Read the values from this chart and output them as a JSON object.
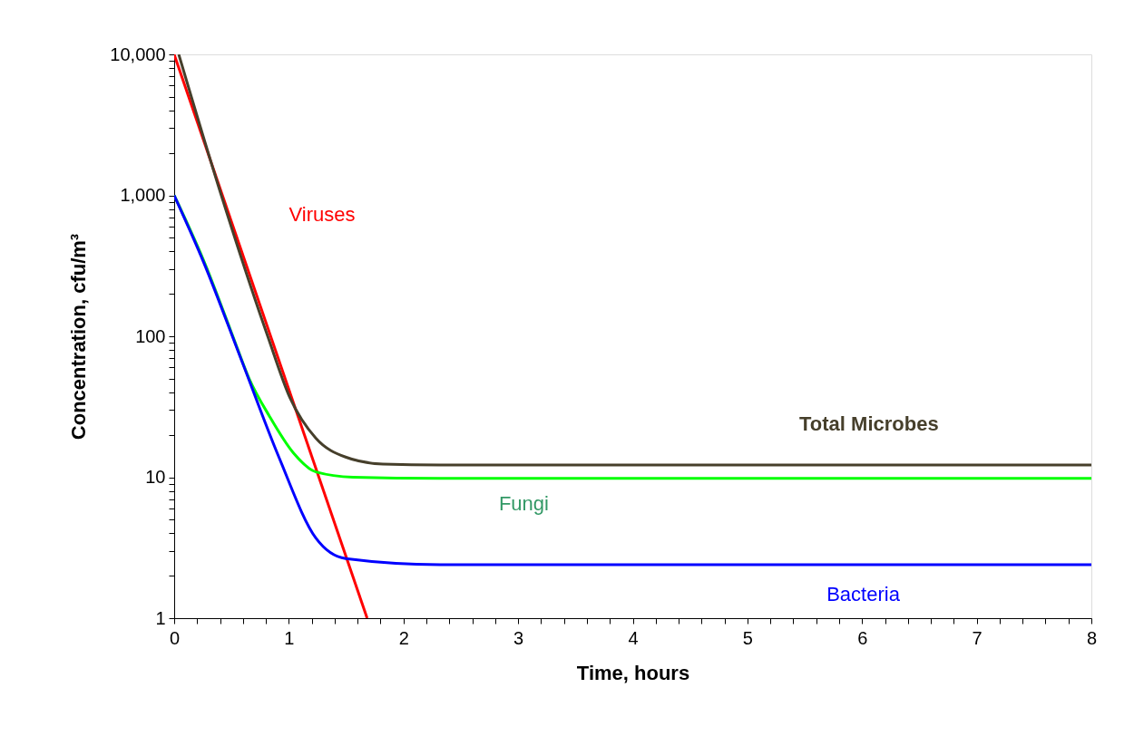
{
  "chart_data": {
    "type": "line",
    "xlabel": "Time, hours",
    "ylabel": "Concentration, cfu/m³",
    "log": "y",
    "grid": false,
    "marker": "none",
    "line_style": "solid",
    "xlim": [
      0,
      8
    ],
    "ylim": [
      1,
      10000
    ],
    "xticks": [
      0,
      {
        "value": 0.2,
        "label": null
      },
      {
        "value": 0.4,
        "label": null
      },
      {
        "value": 0.6,
        "label": null
      },
      {
        "value": 0.8,
        "label": null
      },
      1,
      {
        "value": 1.2,
        "label": null
      },
      {
        "value": 1.4,
        "label": null
      },
      {
        "value": 1.6,
        "label": null
      },
      {
        "value": 1.8,
        "label": null
      },
      2,
      {
        "value": 2.2,
        "label": null
      },
      {
        "value": 2.4,
        "label": null
      },
      {
        "value": 2.6,
        "label": null
      },
      {
        "value": 2.8,
        "label": null
      },
      3,
      {
        "value": 3.2,
        "label": null
      },
      {
        "value": 3.4,
        "label": null
      },
      {
        "value": 3.6,
        "label": null
      },
      {
        "value": 3.8,
        "label": null
      },
      4,
      {
        "value": 4.2,
        "label": null
      },
      {
        "value": 4.4,
        "label": null
      },
      {
        "value": 4.6,
        "label": null
      },
      {
        "value": 4.8,
        "label": null
      },
      5,
      {
        "value": 5.2,
        "label": null
      },
      {
        "value": 5.4,
        "label": null
      },
      {
        "value": 5.6,
        "label": null
      },
      {
        "value": 5.8,
        "label": null
      },
      6,
      {
        "value": 6.2,
        "label": null
      },
      {
        "value": 6.4,
        "label": null
      },
      {
        "value": 6.6,
        "label": null
      },
      {
        "value": 6.8,
        "label": null
      },
      7,
      {
        "value": 7.2,
        "label": null
      },
      {
        "value": 7.4,
        "label": null
      },
      {
        "value": 7.6,
        "label": null
      },
      {
        "value": 7.8,
        "label": null
      },
      8
    ],
    "yticks": [
      1,
      {
        "value": 2,
        "label": null
      },
      {
        "value": 3,
        "label": null
      },
      {
        "value": 4,
        "label": null
      },
      {
        "value": 5,
        "label": null
      },
      {
        "value": 6,
        "label": null
      },
      {
        "value": 7,
        "label": null
      },
      {
        "value": 8,
        "label": null
      },
      {
        "value": 9,
        "label": null
      },
      10,
      {
        "value": 20,
        "label": null
      },
      {
        "value": 30,
        "label": null
      },
      {
        "value": 40,
        "label": null
      },
      {
        "value": 50,
        "label": null
      },
      {
        "value": 60,
        "label": null
      },
      {
        "value": 70,
        "label": null
      },
      {
        "value": 80,
        "label": null
      },
      {
        "value": 90,
        "label": null
      },
      100,
      {
        "value": 200,
        "label": null
      },
      {
        "value": 300,
        "label": null
      },
      {
        "value": 400,
        "label": null
      },
      {
        "value": 500,
        "label": null
      },
      {
        "value": 600,
        "label": null
      },
      {
        "value": 700,
        "label": null
      },
      {
        "value": 800,
        "label": null
      },
      {
        "value": 900,
        "label": null
      },
      {
        "value": 1000,
        "label": "1,000"
      },
      {
        "value": 2000,
        "label": null
      },
      {
        "value": 3000,
        "label": null
      },
      {
        "value": 4000,
        "label": null
      },
      {
        "value": 5000,
        "label": null
      },
      {
        "value": 6000,
        "label": null
      },
      {
        "value": 7000,
        "label": null
      },
      {
        "value": 8000,
        "label": null
      },
      {
        "value": 9000,
        "label": null
      },
      {
        "value": 10000,
        "label": "10,000"
      }
    ],
    "series": [
      {
        "name": "Viruses",
        "color": "#ff0000",
        "x": [
          0,
          1.683
        ],
        "values": [
          10000,
          1
        ]
      },
      {
        "name": "Total Microbes",
        "color": "#463f2b",
        "x": [
          0.04,
          0.411,
          0.816,
          1.01,
          1.236,
          1.495,
          1.82,
          2.32,
          3,
          8
        ],
        "values": [
          10000,
          1000,
          100,
          36.6,
          18.9,
          13.9,
          12.4,
          12.2,
          12.2,
          12.2
        ]
      },
      {
        "name": "Fungi",
        "color": "#00ff00",
        "x": [
          0,
          0.265,
          0.508,
          0.654,
          0.832,
          1.042,
          1.236,
          1.56,
          2.32,
          8
        ],
        "values": [
          1000,
          333,
          102,
          50,
          27,
          14.8,
          10.9,
          10.0,
          9.8,
          9.8
        ]
      },
      {
        "name": "Bacteria",
        "color": "#0000ff",
        "x": [
          0,
          0.265,
          0.589,
          0.913,
          1.236,
          1.495,
          2.32,
          8
        ],
        "values": [
          1000,
          323,
          67,
          13.9,
          3.7,
          2.65,
          2.4,
          2.4
        ]
      }
    ]
  }
}
